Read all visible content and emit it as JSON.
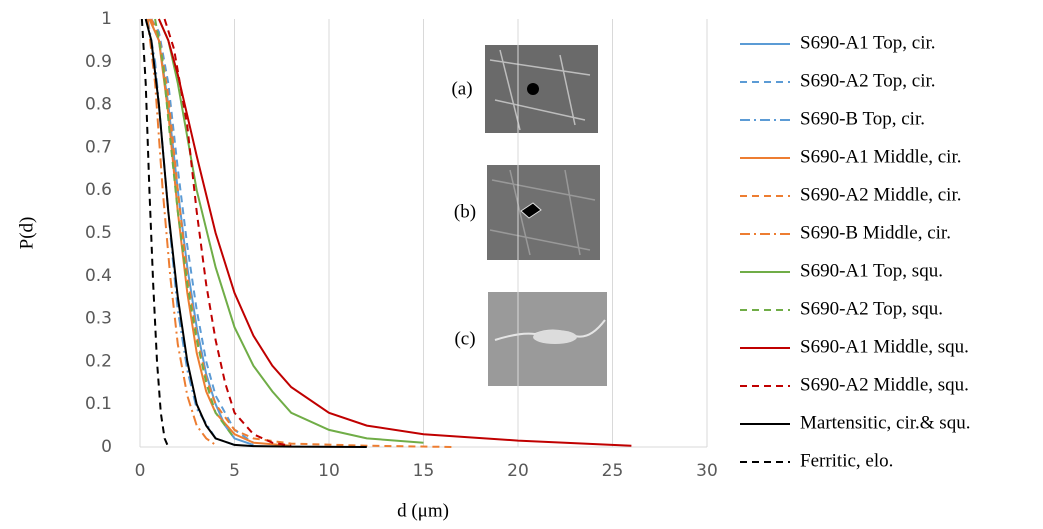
{
  "chart_data": {
    "type": "line",
    "ylabel": "P(d)",
    "xlabel": "d (μm)",
    "xlim": [
      0,
      30
    ],
    "xticks": [
      0,
      5,
      10,
      15,
      20,
      25,
      30
    ],
    "ylim": [
      0,
      1
    ],
    "yticks": [
      0,
      0.1,
      0.2,
      0.3,
      0.4,
      0.5,
      0.6,
      0.7,
      0.8,
      0.9,
      1
    ],
    "grid": "x",
    "legend": "right",
    "series": [
      {
        "name": "S690-A1 Top, cir.",
        "color": "#5b9bd5",
        "linestyle": "solid",
        "x": [
          0.5,
          1,
          1.5,
          2,
          2.5,
          3,
          3.5,
          4,
          4.5,
          5,
          6
        ],
        "values": [
          1,
          0.95,
          0.8,
          0.6,
          0.42,
          0.28,
          0.17,
          0.1,
          0.05,
          0.02,
          0.005
        ]
      },
      {
        "name": "S690-A2 Top, cir.",
        "color": "#5b9bd5",
        "linestyle": "dash",
        "x": [
          0.6,
          1,
          1.5,
          2,
          2.5,
          3,
          3.5,
          4,
          5,
          6
        ],
        "values": [
          1,
          0.97,
          0.85,
          0.65,
          0.47,
          0.32,
          0.2,
          0.12,
          0.04,
          0.01
        ]
      },
      {
        "name": "S690-B Top, cir.",
        "color": "#5b9bd5",
        "linestyle": "dashdot",
        "x": [
          0.4,
          0.8,
          1.2,
          1.6,
          2,
          2.5,
          3,
          4,
          5
        ],
        "values": [
          1,
          0.9,
          0.7,
          0.5,
          0.32,
          0.18,
          0.09,
          0.02,
          0.005
        ]
      },
      {
        "name": "S690-A1 Middle, cir.",
        "color": "#ed7d31",
        "linestyle": "solid",
        "x": [
          0.5,
          1,
          1.5,
          2,
          2.5,
          3,
          3.5,
          4,
          5,
          6,
          8
        ],
        "values": [
          1,
          0.95,
          0.78,
          0.55,
          0.36,
          0.22,
          0.13,
          0.08,
          0.03,
          0.01,
          0.003
        ]
      },
      {
        "name": "S690-A2 Middle, cir.",
        "color": "#ed7d31",
        "linestyle": "dash",
        "x": [
          0.6,
          1,
          1.5,
          2,
          2.5,
          3,
          3.5,
          4,
          5,
          6,
          8,
          12,
          16.5
        ],
        "values": [
          1,
          0.96,
          0.82,
          0.6,
          0.4,
          0.26,
          0.16,
          0.1,
          0.04,
          0.02,
          0.008,
          0.003,
          0
        ]
      },
      {
        "name": "S690-B Middle, cir.",
        "color": "#ed7d31",
        "linestyle": "dashdot",
        "x": [
          0.4,
          0.8,
          1.2,
          1.6,
          2,
          2.5,
          3,
          3.5,
          4
        ],
        "values": [
          1,
          0.85,
          0.6,
          0.4,
          0.24,
          0.12,
          0.05,
          0.02,
          0.005
        ]
      },
      {
        "name": "S690-A1 Top, squ.",
        "color": "#70ad47",
        "linestyle": "solid",
        "x": [
          1,
          1.5,
          2,
          3,
          4,
          5,
          6,
          7,
          8,
          10,
          12,
          15
        ],
        "values": [
          1,
          0.95,
          0.85,
          0.6,
          0.42,
          0.28,
          0.19,
          0.13,
          0.08,
          0.04,
          0.02,
          0.01
        ]
      },
      {
        "name": "S690-A2 Top, squ.",
        "color": "#70ad47",
        "linestyle": "dash",
        "x": [
          0.8,
          1.2,
          1.6,
          2,
          2.5,
          3,
          3.5,
          4,
          5
        ],
        "values": [
          1,
          0.9,
          0.72,
          0.55,
          0.38,
          0.25,
          0.15,
          0.08,
          0.02
        ]
      },
      {
        "name": "S690-A1 Middle, squ.",
        "color": "#c00000",
        "linestyle": "solid",
        "x": [
          1,
          1.5,
          2,
          3,
          4,
          5,
          6,
          7,
          8,
          10,
          12,
          15,
          20,
          26
        ],
        "values": [
          1,
          0.95,
          0.87,
          0.68,
          0.5,
          0.36,
          0.26,
          0.19,
          0.14,
          0.08,
          0.05,
          0.03,
          0.015,
          0.003
        ]
      },
      {
        "name": "S690-A2 Middle, squ.",
        "color": "#c00000",
        "linestyle": "dash",
        "x": [
          1.3,
          1.8,
          2.5,
          3,
          3.5,
          4,
          4.5,
          5,
          6,
          7,
          8
        ],
        "values": [
          1,
          0.93,
          0.75,
          0.55,
          0.38,
          0.25,
          0.15,
          0.08,
          0.03,
          0.01,
          0.003
        ]
      },
      {
        "name": "Martensitic, cir.& squ.",
        "color": "#000000",
        "linestyle": "solid",
        "x": [
          0.3,
          0.6,
          1,
          1.5,
          2,
          2.5,
          3,
          3.5,
          4,
          5,
          6,
          8,
          12
        ],
        "values": [
          1,
          0.95,
          0.8,
          0.55,
          0.35,
          0.2,
          0.1,
          0.05,
          0.02,
          0.005,
          0.002,
          0.001,
          0
        ]
      },
      {
        "name": "Ferritic, elo.",
        "color": "#000000",
        "linestyle": "dash",
        "x": [
          0.1,
          0.3,
          0.5,
          0.7,
          0.9,
          1.1,
          1.3,
          1.5
        ],
        "values": [
          1,
          0.85,
          0.6,
          0.38,
          0.2,
          0.08,
          0.02,
          0
        ]
      }
    ],
    "insets": [
      {
        "label": "(a)"
      },
      {
        "label": "(b)"
      },
      {
        "label": "(c)"
      }
    ]
  }
}
